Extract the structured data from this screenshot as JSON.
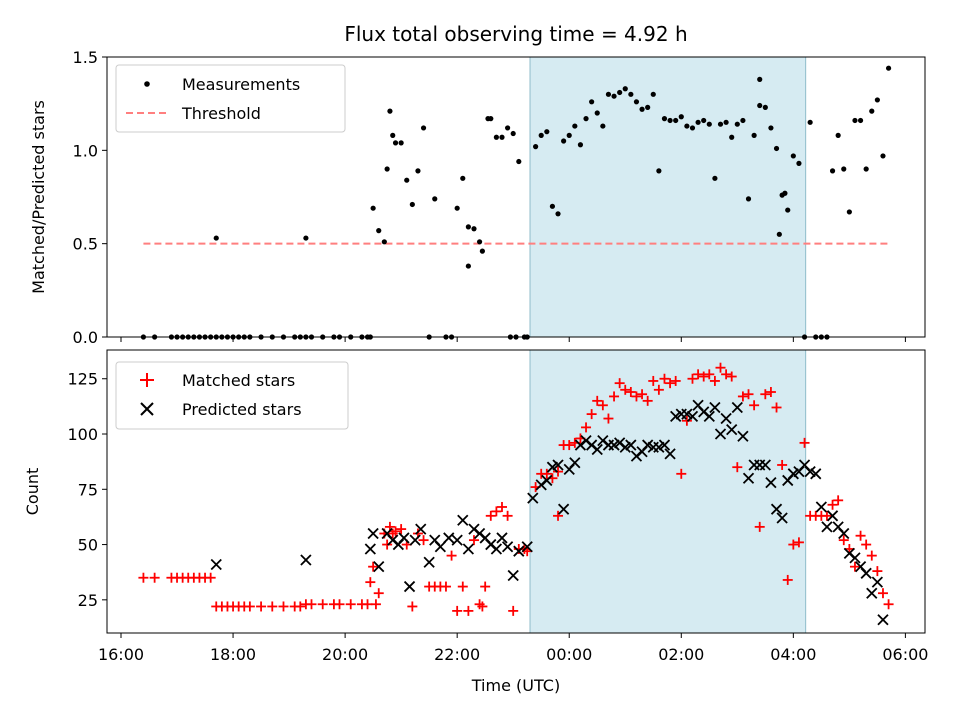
{
  "chart_data": [
    {
      "type": "scatter",
      "panel": "top",
      "title": "Flux total observing time = 4.92 h",
      "xlabel": "",
      "ylabel": "Matched/Predicted stars",
      "xlim": [
        15.75,
        30.35
      ],
      "ylim": [
        0.0,
        1.5
      ],
      "yticks": [
        0.0,
        0.5,
        1.0,
        1.5
      ],
      "ytick_labels": [
        "0.0",
        "0.5",
        "1.0",
        "1.5"
      ],
      "shaded_interval": {
        "start": 23.3,
        "end": 28.22,
        "color": "#add8e6"
      },
      "legend": {
        "location": "top-left",
        "entries": [
          "Measurements",
          "Threshold"
        ]
      },
      "series": [
        {
          "name": "Measurements",
          "color": "#000000",
          "marker": "dot",
          "x": [
            16.4,
            16.6,
            16.9,
            17.0,
            17.1,
            17.2,
            17.3,
            17.4,
            17.5,
            17.6,
            17.7,
            17.8,
            17.9,
            18.0,
            18.1,
            18.2,
            18.3,
            18.5,
            18.7,
            18.9,
            19.1,
            19.2,
            19.3,
            19.4,
            19.6,
            19.8,
            19.9,
            20.1,
            20.3,
            20.4,
            20.45,
            20.5,
            20.6,
            20.7,
            20.75,
            20.8,
            20.85,
            20.9,
            21.0,
            21.1,
            21.2,
            21.3,
            21.4,
            21.5,
            21.6,
            21.8,
            21.9,
            22.0,
            22.1,
            22.2,
            22.3,
            22.4,
            22.45,
            22.6,
            22.7,
            22.8,
            22.9,
            23.0,
            23.1,
            23.2,
            23.25,
            23.4,
            23.5,
            23.6,
            23.7,
            23.8,
            23.9,
            24.0,
            24.1,
            24.2,
            24.3,
            24.4,
            24.5,
            24.6,
            24.7,
            24.8,
            24.9,
            25.0,
            25.1,
            25.2,
            25.3,
            25.4,
            25.5,
            25.6,
            25.7,
            25.8,
            25.9,
            26.0,
            26.1,
            26.2,
            26.3,
            26.4,
            26.5,
            26.6,
            26.7,
            26.8,
            26.9,
            27.0,
            27.1,
            27.2,
            27.3,
            27.4,
            27.5,
            27.6,
            27.7,
            27.8,
            27.9,
            28.0,
            28.1,
            28.2,
            28.3,
            28.4,
            28.5,
            28.6,
            28.7,
            28.8,
            28.9,
            29.0,
            29.1,
            29.2,
            29.3,
            29.4,
            29.5,
            29.6,
            29.7,
            17.7,
            19.3,
            22.95,
            23.05,
            22.2,
            22.55,
            27.4,
            27.75,
            27.85
          ],
          "y": [
            0.0,
            0.0,
            0.0,
            0.0,
            0.0,
            0.0,
            0.0,
            0.0,
            0.0,
            0.0,
            0.0,
            0.0,
            0.0,
            0.0,
            0.0,
            0.0,
            0.0,
            0.0,
            0.0,
            0.0,
            0.0,
            0.0,
            0.0,
            0.0,
            0.0,
            0.0,
            0.0,
            0.0,
            0.0,
            0.0,
            0.0,
            0.69,
            0.57,
            0.51,
            0.9,
            1.21,
            1.08,
            1.04,
            1.04,
            0.84,
            0.71,
            0.89,
            1.12,
            0.0,
            0.74,
            0.0,
            0.0,
            0.69,
            0.85,
            0.38,
            0.58,
            0.51,
            0.46,
            1.17,
            1.07,
            1.07,
            1.12,
            1.09,
            0.94,
            0.0,
            0.0,
            1.02,
            1.08,
            1.1,
            0.7,
            0.66,
            1.05,
            1.08,
            1.13,
            1.03,
            1.17,
            1.26,
            1.2,
            1.13,
            1.3,
            1.29,
            1.31,
            1.33,
            1.3,
            1.26,
            1.22,
            1.23,
            1.3,
            0.89,
            1.17,
            1.16,
            1.16,
            1.18,
            1.13,
            1.12,
            1.15,
            1.16,
            1.14,
            0.85,
            1.14,
            1.15,
            1.07,
            1.14,
            1.16,
            0.74,
            1.08,
            1.24,
            1.23,
            1.12,
            1.01,
            0.76,
            0.68,
            0.97,
            0.93,
            0.0,
            1.15,
            0.0,
            0.0,
            0.0,
            0.89,
            1.08,
            0.9,
            0.67,
            1.16,
            1.16,
            0.9,
            1.21,
            1.27,
            0.97,
            1.44,
            0.53,
            0.53,
            0.0,
            0.0,
            0.59,
            1.17,
            1.38,
            0.55,
            0.77
          ]
        },
        {
          "name": "Threshold",
          "color": "#ff7f7f",
          "style": "dashed",
          "x": [
            16.4,
            29.7
          ],
          "y": [
            0.5,
            0.5
          ]
        }
      ]
    },
    {
      "type": "scatter",
      "panel": "bottom",
      "title": "",
      "xlabel": "Time (UTC)",
      "ylabel": "Count",
      "xlim": [
        15.75,
        30.35
      ],
      "ylim": [
        10,
        138
      ],
      "xticks": [
        16,
        18,
        20,
        22,
        24,
        26,
        28,
        30
      ],
      "xtick_labels": [
        "16:00",
        "18:00",
        "20:00",
        "22:00",
        "00:00",
        "02:00",
        "04:00",
        "06:00"
      ],
      "yticks": [
        25,
        50,
        75,
        100,
        125
      ],
      "ytick_labels": [
        "25",
        "50",
        "75",
        "100",
        "125"
      ],
      "shaded_interval": {
        "start": 23.3,
        "end": 28.22,
        "color": "#add8e6"
      },
      "legend": {
        "location": "top-left",
        "entries": [
          "Matched stars",
          "Predicted stars"
        ]
      },
      "series": [
        {
          "name": "Matched stars",
          "color": "#ff0000",
          "marker": "plus",
          "x": [
            16.4,
            16.6,
            16.9,
            17.0,
            17.1,
            17.2,
            17.3,
            17.4,
            17.5,
            17.6,
            17.7,
            17.8,
            17.9,
            18.0,
            18.1,
            18.2,
            18.3,
            18.5,
            18.7,
            18.9,
            19.1,
            19.2,
            19.3,
            19.4,
            19.6,
            19.8,
            19.9,
            20.1,
            20.3,
            20.4,
            20.45,
            20.5,
            20.6,
            20.7,
            20.75,
            20.8,
            20.85,
            20.9,
            21.0,
            21.1,
            21.2,
            21.3,
            21.4,
            21.5,
            21.6,
            21.8,
            21.9,
            22.0,
            22.1,
            22.2,
            22.3,
            22.4,
            22.45,
            22.6,
            22.7,
            22.8,
            22.9,
            23.0,
            23.1,
            23.2,
            23.25,
            23.4,
            23.5,
            23.6,
            23.7,
            23.8,
            23.9,
            24.0,
            24.1,
            24.2,
            24.3,
            24.4,
            24.5,
            24.6,
            24.7,
            24.8,
            24.9,
            25.0,
            25.1,
            25.2,
            25.3,
            25.4,
            25.5,
            25.6,
            25.7,
            25.8,
            25.9,
            26.0,
            26.1,
            26.2,
            26.3,
            26.4,
            26.5,
            26.6,
            26.7,
            26.8,
            26.9,
            27.0,
            27.1,
            27.2,
            27.3,
            27.4,
            27.5,
            27.6,
            27.7,
            27.8,
            27.9,
            28.0,
            28.1,
            28.2,
            28.3,
            28.4,
            28.5,
            28.6,
            28.7,
            28.8,
            28.9,
            29.0,
            29.1,
            29.2,
            29.3,
            29.4,
            29.5,
            29.6,
            29.7,
            20.55,
            21.7,
            22.5,
            23.8
          ],
          "y": [
            35,
            35,
            35,
            35,
            35,
            35,
            35,
            35,
            35,
            35,
            22,
            22,
            22,
            22,
            22,
            22,
            22,
            22,
            22,
            22,
            22,
            22,
            23,
            23,
            23,
            23,
            23,
            23,
            23,
            23,
            33,
            40,
            28,
            55,
            50,
            58,
            55,
            56,
            57,
            50,
            22,
            55,
            52,
            31,
            31,
            31,
            45,
            20,
            31,
            20,
            52,
            23,
            22,
            63,
            65,
            67,
            63,
            20,
            48,
            48,
            47,
            76,
            82,
            82,
            80,
            83,
            95,
            95,
            96,
            98,
            103,
            109,
            115,
            113,
            107,
            117,
            123,
            120,
            119,
            117,
            118,
            115,
            124,
            120,
            125,
            123,
            124,
            82,
            106,
            125,
            127,
            126,
            127,
            124,
            130,
            127,
            126,
            85,
            117,
            118,
            113,
            58,
            118,
            119,
            112,
            86,
            34,
            50,
            51,
            96,
            63,
            63,
            63,
            63,
            68,
            70,
            52,
            48,
            40,
            54,
            50,
            45,
            38,
            28,
            23,
            23,
            31,
            31,
            63
          ],
          "note": "approximate trailing points"
        },
        {
          "name": "Predicted stars",
          "color": "#000000",
          "marker": "x",
          "x": [
            17.7,
            19.3,
            20.45,
            20.5,
            20.6,
            20.75,
            20.85,
            20.95,
            21.05,
            21.15,
            21.25,
            21.35,
            21.5,
            21.6,
            21.7,
            21.85,
            22.0,
            22.1,
            22.2,
            22.3,
            22.4,
            22.5,
            22.6,
            22.7,
            22.8,
            22.9,
            23.0,
            23.1,
            23.25,
            23.35,
            23.5,
            23.6,
            23.7,
            23.8,
            23.9,
            24.0,
            24.1,
            24.2,
            24.3,
            24.4,
            24.5,
            24.6,
            24.7,
            24.8,
            24.9,
            25.0,
            25.1,
            25.2,
            25.3,
            25.4,
            25.5,
            25.6,
            25.7,
            25.8,
            25.9,
            26.0,
            26.1,
            26.2,
            26.3,
            26.4,
            26.5,
            26.6,
            26.7,
            26.8,
            26.9,
            27.0,
            27.1,
            27.2,
            27.3,
            27.4,
            27.5,
            27.6,
            27.7,
            27.8,
            27.9,
            28.0,
            28.1,
            28.2,
            28.3,
            28.4,
            28.5,
            28.6,
            28.7,
            28.8,
            28.9,
            29.0,
            29.1,
            29.2,
            29.3,
            29.4,
            29.5,
            29.6
          ],
          "y": [
            41,
            43,
            48,
            55,
            40,
            55,
            52,
            50,
            53,
            31,
            52,
            57,
            42,
            52,
            49,
            53,
            52,
            61,
            48,
            57,
            55,
            53,
            50,
            48,
            53,
            49,
            36,
            47,
            49,
            71,
            77,
            79,
            85,
            86,
            66,
            84,
            87,
            95,
            97,
            95,
            93,
            97,
            95,
            95,
            96,
            94,
            95,
            90,
            92,
            95,
            94,
            94,
            95,
            91,
            108,
            109,
            109,
            108,
            113,
            110,
            108,
            112,
            100,
            107,
            102,
            112,
            99,
            80,
            86,
            86,
            86,
            78,
            66,
            62,
            79,
            82,
            83,
            86,
            83,
            82,
            67,
            58,
            63,
            58,
            55,
            46,
            44,
            40,
            37,
            28,
            33,
            16
          ]
        }
      ]
    }
  ]
}
